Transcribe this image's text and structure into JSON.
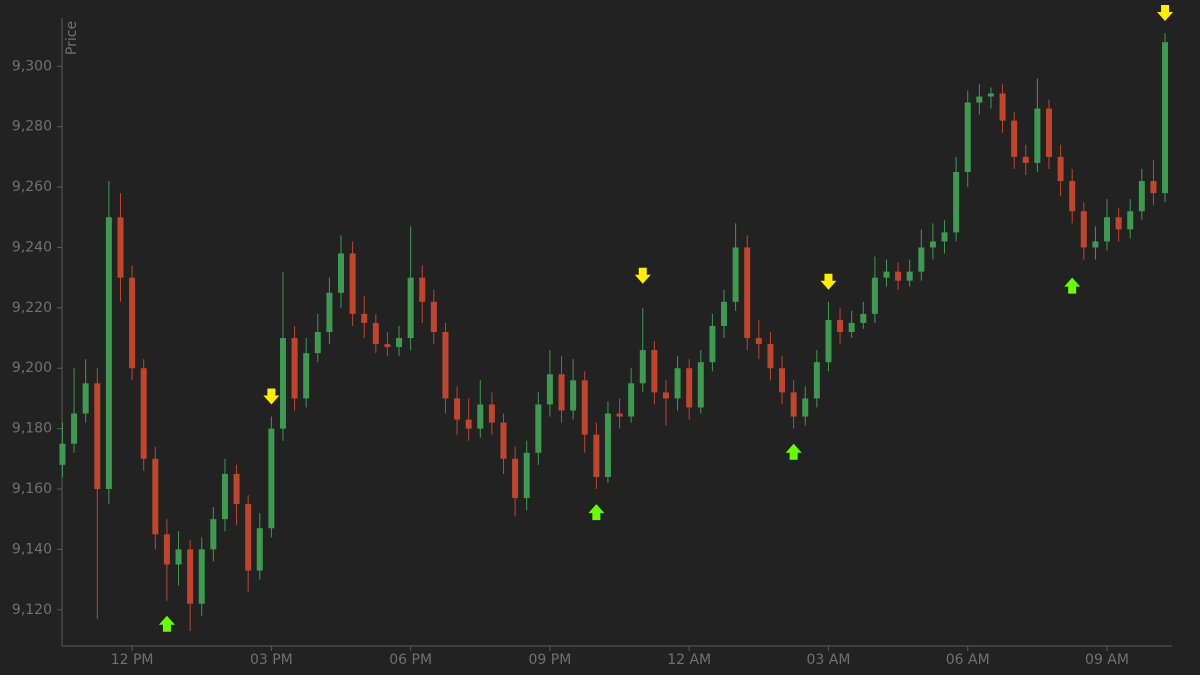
{
  "chart_data": {
    "type": "candlestick",
    "y_label": "Price",
    "up_color": "#3d9a50",
    "down_color": "#c0452c",
    "buy_color": "#66ff00",
    "sell_color": "#ffee00",
    "xlim": [
      10.49,
      34.4
    ],
    "ylim": [
      9108,
      9316
    ],
    "xticks": [
      {
        "value": 12,
        "label": "12 PM"
      },
      {
        "value": 15,
        "label": "03 PM"
      },
      {
        "value": 18,
        "label": "06 PM"
      },
      {
        "value": 21,
        "label": "09 PM"
      },
      {
        "value": 24,
        "label": "12 AM"
      },
      {
        "value": 27,
        "label": "03 AM"
      },
      {
        "value": 30,
        "label": "06 AM"
      },
      {
        "value": 33,
        "label": "09 AM"
      }
    ],
    "yticks": [
      {
        "value": 9120,
        "label": "9,120"
      },
      {
        "value": 9140,
        "label": "9,140"
      },
      {
        "value": 9160,
        "label": "9,160"
      },
      {
        "value": 9180,
        "label": "9,180"
      },
      {
        "value": 9200,
        "label": "9,200"
      },
      {
        "value": 9220,
        "label": "9,220"
      },
      {
        "value": 9240,
        "label": "9,240"
      },
      {
        "value": 9260,
        "label": "9,260"
      },
      {
        "value": 9280,
        "label": "9,280"
      },
      {
        "value": 9300,
        "label": "9,300"
      }
    ],
    "x": [
      10.5,
      10.75,
      11,
      11.25,
      11.5,
      11.75,
      12,
      12.25,
      12.5,
      12.75,
      13,
      13.25,
      13.5,
      13.75,
      14,
      14.25,
      14.5,
      14.75,
      15,
      15.25,
      15.5,
      15.75,
      16,
      16.25,
      16.5,
      16.75,
      17,
      17.25,
      17.5,
      17.75,
      18,
      18.25,
      18.5,
      18.75,
      19,
      19.25,
      19.5,
      19.75,
      20,
      20.25,
      20.5,
      20.75,
      21,
      21.25,
      21.5,
      21.75,
      22,
      22.25,
      22.5,
      22.75,
      23,
      23.25,
      23.5,
      23.75,
      24,
      24.25,
      24.5,
      24.75,
      25,
      25.25,
      25.5,
      25.75,
      26,
      26.25,
      26.5,
      26.75,
      27,
      27.25,
      27.5,
      27.75,
      28,
      28.25,
      28.5,
      28.75,
      29,
      29.25,
      29.5,
      29.75,
      30,
      30.25,
      30.5,
      30.75,
      31,
      31.25,
      31.5,
      31.75,
      32,
      32.25,
      32.5,
      32.75,
      33,
      33.25,
      33.5,
      33.75,
      34,
      34.25
    ],
    "open": [
      9168,
      9175,
      9185,
      9195,
      9160,
      9250,
      9230,
      9200,
      9170,
      9145,
      9135,
      9140,
      9122,
      9140,
      9150,
      9165,
      9155,
      9133,
      9147,
      9180,
      9210,
      9190,
      9205,
      9212,
      9225,
      9238,
      9218,
      9215,
      9208,
      9207,
      9210,
      9230,
      9222,
      9212,
      9190,
      9183,
      9180,
      9188,
      9182,
      9170,
      9157,
      9172,
      9188,
      9198,
      9186,
      9196,
      9178,
      9164,
      9185,
      9184,
      9195,
      9206,
      9192,
      9190,
      9200,
      9187,
      9202,
      9214,
      9222,
      9240,
      9210,
      9208,
      9200,
      9192,
      9184,
      9190,
      9202,
      9216,
      9212,
      9215,
      9218,
      9230,
      9232,
      9229,
      9232,
      9240,
      9242,
      9245,
      9265,
      9288,
      9290,
      9291,
      9282,
      9270,
      9268,
      9286,
      9270,
      9262,
      9252,
      9240,
      9242,
      9250,
      9246,
      9252,
      9262,
      9258
    ],
    "high": [
      9182,
      9200,
      9203,
      9200,
      9262,
      9258,
      9234,
      9203,
      9174,
      9150,
      9146,
      9143,
      9144,
      9154,
      9170,
      9168,
      9158,
      9152,
      9184,
      9232,
      9214,
      9210,
      9218,
      9230,
      9244,
      9242,
      9224,
      9218,
      9212,
      9214,
      9247,
      9234,
      9226,
      9215,
      9194,
      9190,
      9196,
      9192,
      9185,
      9174,
      9176,
      9192,
      9206,
      9204,
      9203,
      9199,
      9182,
      9189,
      9190,
      9200,
      9220,
      9209,
      9196,
      9204,
      9203,
      9206,
      9218,
      9226,
      9248,
      9244,
      9216,
      9212,
      9204,
      9196,
      9194,
      9206,
      9222,
      9220,
      9219,
      9222,
      9237,
      9236,
      9235,
      9236,
      9246,
      9248,
      9249,
      9270,
      9292,
      9294,
      9293,
      9294,
      9285,
      9274,
      9296,
      9289,
      9274,
      9266,
      9255,
      9247,
      9256,
      9253,
      9256,
      9266,
      9269,
      9311
    ],
    "low": [
      9164,
      9172,
      9182,
      9117,
      9155,
      9222,
      9196,
      9166,
      9140,
      9123,
      9128,
      9113,
      9118,
      9136,
      9146,
      9148,
      9126,
      9130,
      9144,
      9176,
      9186,
      9187,
      9202,
      9208,
      9220,
      9214,
      9210,
      9205,
      9204,
      9204,
      9206,
      9215,
      9208,
      9185,
      9178,
      9176,
      9177,
      9178,
      9165,
      9151,
      9153,
      9168,
      9184,
      9182,
      9183,
      9172,
      9160,
      9162,
      9180,
      9182,
      9192,
      9188,
      9181,
      9186,
      9183,
      9185,
      9199,
      9210,
      9219,
      9206,
      9203,
      9196,
      9188,
      9180,
      9181,
      9187,
      9199,
      9208,
      9210,
      9213,
      9215,
      9227,
      9226,
      9227,
      9229,
      9236,
      9238,
      9242,
      9260,
      9284,
      9286,
      9278,
      9266,
      9264,
      9265,
      9266,
      9257,
      9248,
      9236,
      9236,
      9239,
      9242,
      9243,
      9249,
      9254,
      9255
    ],
    "close": [
      9175,
      9185,
      9195,
      9160,
      9250,
      9230,
      9200,
      9170,
      9145,
      9135,
      9140,
      9122,
      9140,
      9150,
      9165,
      9155,
      9133,
      9147,
      9180,
      9210,
      9190,
      9205,
      9212,
      9225,
      9238,
      9218,
      9215,
      9208,
      9207,
      9210,
      9230,
      9222,
      9212,
      9190,
      9183,
      9180,
      9188,
      9182,
      9170,
      9157,
      9172,
      9188,
      9198,
      9186,
      9196,
      9178,
      9164,
      9185,
      9184,
      9195,
      9206,
      9192,
      9190,
      9200,
      9187,
      9202,
      9214,
      9222,
      9240,
      9210,
      9208,
      9200,
      9192,
      9184,
      9190,
      9202,
      9216,
      9212,
      9215,
      9218,
      9230,
      9232,
      9229,
      9232,
      9240,
      9242,
      9245,
      9265,
      9288,
      9290,
      9291,
      9282,
      9270,
      9268,
      9286,
      9270,
      9262,
      9252,
      9240,
      9242,
      9250,
      9246,
      9252,
      9262,
      9258,
      9308
    ],
    "signals": [
      {
        "x": 12.75,
        "price": 9118,
        "side": "buy"
      },
      {
        "x": 15,
        "price": 9188,
        "side": "sell"
      },
      {
        "x": 22,
        "price": 9155,
        "side": "buy"
      },
      {
        "x": 23,
        "price": 9228,
        "side": "sell"
      },
      {
        "x": 26.25,
        "price": 9175,
        "side": "buy"
      },
      {
        "x": 27,
        "price": 9226,
        "side": "sell"
      },
      {
        "x": 32.25,
        "price": 9230,
        "side": "buy"
      },
      {
        "x": 34.25,
        "price": 9315,
        "side": "sell"
      }
    ]
  }
}
